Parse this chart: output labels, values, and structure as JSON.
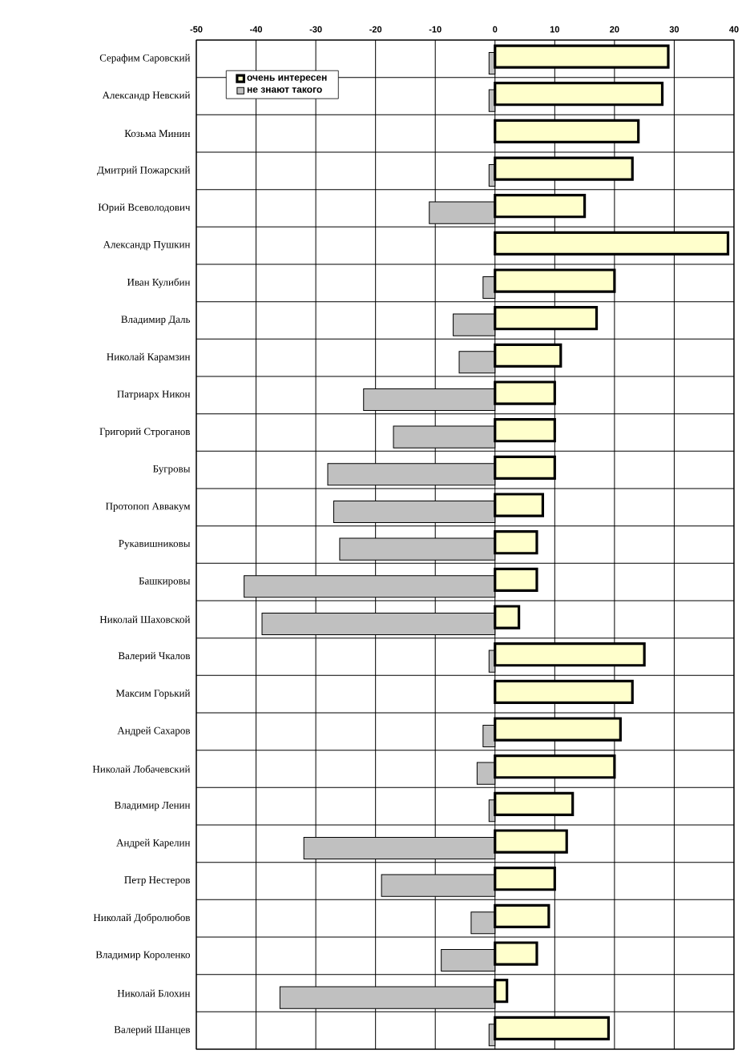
{
  "chart_data": {
    "type": "bar",
    "orientation": "horizontal",
    "categories": [
      "Серафим Саровский",
      "Александр Невский",
      "Козьма Минин",
      "Дмитрий Пожарский",
      "Юрий Всеволодович",
      "Александр Пушкин",
      "Иван Кулибин",
      "Владимир Даль",
      "Николай Карамзин",
      "Патриарх Никон",
      "Григорий Строганов",
      "Бугровы",
      "Протопоп Аввакум",
      "Рукавишниковы",
      "Башкировы",
      "Николай Шаховской",
      "Валерий Чкалов",
      "Максим Горький",
      "Андрей Сахаров",
      "Николай Лобачевский",
      "Владимир Ленин",
      "Андрей Карелин",
      "Петр Нестеров",
      "Николай Добролюбов",
      "Владимир Короленко",
      "Николай Блохин",
      "Валерий Шанцев"
    ],
    "series": [
      {
        "name": "очень интересен",
        "color": "#ffffcc",
        "values": [
          29,
          28,
          24,
          23,
          15,
          39,
          20,
          17,
          11,
          10,
          10,
          10,
          8,
          7,
          7,
          4,
          25,
          23,
          21,
          20,
          13,
          12,
          10,
          9,
          7,
          2,
          19
        ]
      },
      {
        "name": "не знают такого",
        "color": "#c0c0c0",
        "values": [
          -1,
          -1,
          null,
          -1,
          -11,
          null,
          -2,
          -7,
          -6,
          -22,
          -17,
          -28,
          -27,
          -26,
          -42,
          -39,
          -1,
          null,
          -2,
          -3,
          -1,
          -32,
          -19,
          -4,
          -9,
          -36,
          -1
        ]
      }
    ],
    "xlim": [
      -50,
      40
    ],
    "xticks": [
      -50,
      -40,
      -30,
      -20,
      -10,
      0,
      10,
      20,
      30,
      40
    ],
    "grid": true,
    "legend": "top left"
  }
}
